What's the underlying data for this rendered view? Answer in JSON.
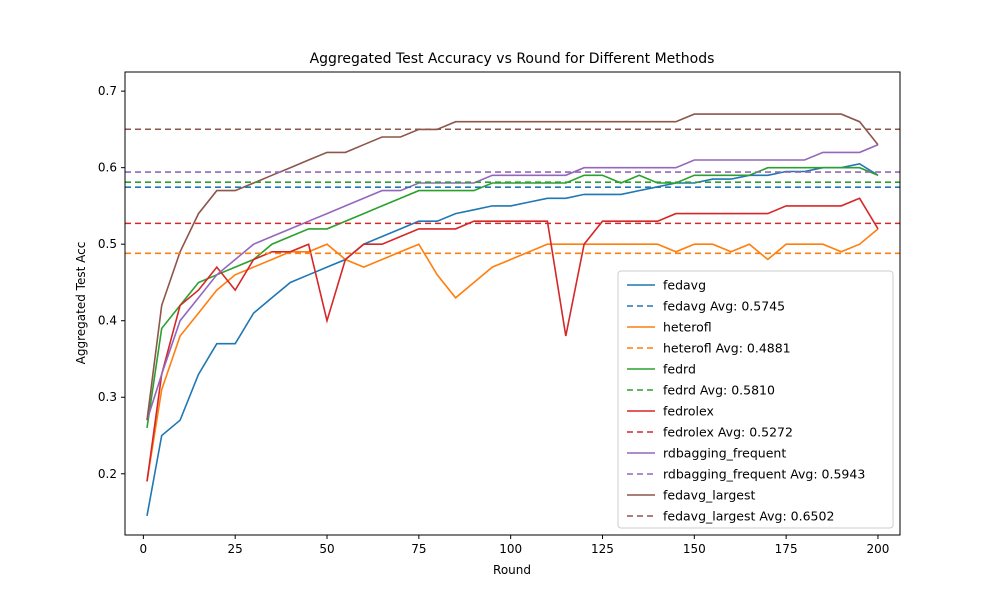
{
  "chart_data": {
    "type": "line",
    "title": "Aggregated Test Accuracy vs Round for Different Methods",
    "xlabel": "Round",
    "ylabel": "Aggregated Test Acc",
    "xlim": [
      -5,
      206
    ],
    "ylim": [
      0.12,
      0.725
    ],
    "xticks": [
      0,
      25,
      50,
      75,
      100,
      125,
      150,
      175,
      200
    ],
    "yticks": [
      0.2,
      0.3,
      0.4,
      0.5,
      0.6,
      0.7
    ],
    "ytick_labels": [
      "0.2",
      "0.3",
      "0.4",
      "0.5",
      "0.6",
      "0.7"
    ],
    "grid": false,
    "legend_position": "lower-right",
    "series": [
      {
        "name": "fedavg",
        "color": "#1f77b4",
        "avg": 0.5745,
        "avg_label": "fedavg Avg: 0.5745",
        "x": [
          1,
          5,
          10,
          15,
          20,
          25,
          30,
          35,
          40,
          45,
          50,
          55,
          60,
          65,
          70,
          75,
          80,
          85,
          90,
          95,
          100,
          105,
          110,
          115,
          120,
          125,
          130,
          135,
          140,
          145,
          150,
          155,
          160,
          165,
          170,
          175,
          180,
          185,
          190,
          195,
          200
        ],
        "y": [
          0.145,
          0.25,
          0.27,
          0.33,
          0.37,
          0.37,
          0.41,
          0.43,
          0.45,
          0.46,
          0.47,
          0.48,
          0.5,
          0.51,
          0.52,
          0.53,
          0.53,
          0.54,
          0.545,
          0.55,
          0.55,
          0.555,
          0.56,
          0.56,
          0.565,
          0.565,
          0.565,
          0.57,
          0.575,
          0.58,
          0.58,
          0.585,
          0.585,
          0.59,
          0.59,
          0.595,
          0.595,
          0.6,
          0.6,
          0.605,
          0.59
        ]
      },
      {
        "name": "heterofl",
        "color": "#ff7f0e",
        "avg": 0.4881,
        "avg_label": "heterofl Avg: 0.4881",
        "x": [
          1,
          5,
          10,
          15,
          20,
          25,
          30,
          35,
          40,
          45,
          50,
          55,
          60,
          65,
          70,
          75,
          80,
          85,
          90,
          95,
          100,
          105,
          110,
          115,
          120,
          125,
          130,
          135,
          140,
          145,
          150,
          155,
          160,
          165,
          170,
          175,
          180,
          185,
          190,
          195,
          200
        ],
        "y": [
          0.19,
          0.31,
          0.38,
          0.41,
          0.44,
          0.46,
          0.47,
          0.48,
          0.49,
          0.49,
          0.5,
          0.48,
          0.47,
          0.48,
          0.49,
          0.5,
          0.46,
          0.43,
          0.45,
          0.47,
          0.48,
          0.49,
          0.5,
          0.5,
          0.5,
          0.5,
          0.5,
          0.5,
          0.5,
          0.49,
          0.5,
          0.5,
          0.49,
          0.5,
          0.48,
          0.5,
          0.5,
          0.5,
          0.49,
          0.5,
          0.52
        ]
      },
      {
        "name": "fedrd",
        "color": "#2ca02c",
        "avg": 0.581,
        "avg_label": "fedrd Avg: 0.5810",
        "x": [
          1,
          5,
          10,
          15,
          20,
          25,
          30,
          35,
          40,
          45,
          50,
          55,
          60,
          65,
          70,
          75,
          80,
          85,
          90,
          95,
          100,
          105,
          110,
          115,
          120,
          125,
          130,
          135,
          140,
          145,
          150,
          155,
          160,
          165,
          170,
          175,
          180,
          185,
          190,
          195,
          200
        ],
        "y": [
          0.26,
          0.39,
          0.42,
          0.45,
          0.46,
          0.47,
          0.48,
          0.5,
          0.51,
          0.52,
          0.52,
          0.53,
          0.54,
          0.55,
          0.56,
          0.57,
          0.57,
          0.57,
          0.57,
          0.58,
          0.58,
          0.58,
          0.58,
          0.58,
          0.59,
          0.59,
          0.58,
          0.59,
          0.58,
          0.58,
          0.59,
          0.59,
          0.59,
          0.59,
          0.6,
          0.6,
          0.6,
          0.6,
          0.6,
          0.6,
          0.59
        ]
      },
      {
        "name": "fedrolex",
        "color": "#d62728",
        "avg": 0.5272,
        "avg_label": "fedrolex Avg: 0.5272",
        "x": [
          1,
          5,
          10,
          15,
          20,
          25,
          30,
          35,
          40,
          45,
          50,
          55,
          60,
          65,
          70,
          75,
          80,
          85,
          90,
          95,
          100,
          105,
          110,
          115,
          120,
          125,
          130,
          135,
          140,
          145,
          150,
          155,
          160,
          165,
          170,
          175,
          180,
          185,
          190,
          195,
          200
        ],
        "y": [
          0.19,
          0.33,
          0.42,
          0.44,
          0.47,
          0.44,
          0.48,
          0.49,
          0.49,
          0.5,
          0.4,
          0.48,
          0.5,
          0.5,
          0.51,
          0.52,
          0.52,
          0.52,
          0.53,
          0.53,
          0.53,
          0.53,
          0.53,
          0.38,
          0.5,
          0.53,
          0.53,
          0.53,
          0.53,
          0.54,
          0.54,
          0.54,
          0.54,
          0.54,
          0.54,
          0.55,
          0.55,
          0.55,
          0.55,
          0.56,
          0.52
        ]
      },
      {
        "name": "rdbagging_frequent",
        "color": "#9467bd",
        "avg": 0.5943,
        "avg_label": "rdbagging_frequent Avg: 0.5943",
        "x": [
          1,
          5,
          10,
          15,
          20,
          25,
          30,
          35,
          40,
          45,
          50,
          55,
          60,
          65,
          70,
          75,
          80,
          85,
          90,
          95,
          100,
          105,
          110,
          115,
          120,
          125,
          130,
          135,
          140,
          145,
          150,
          155,
          160,
          165,
          170,
          175,
          180,
          185,
          190,
          195,
          200
        ],
        "y": [
          0.27,
          0.33,
          0.4,
          0.43,
          0.46,
          0.48,
          0.5,
          0.51,
          0.52,
          0.53,
          0.54,
          0.55,
          0.56,
          0.57,
          0.57,
          0.58,
          0.58,
          0.58,
          0.58,
          0.59,
          0.59,
          0.59,
          0.59,
          0.59,
          0.6,
          0.6,
          0.6,
          0.6,
          0.6,
          0.6,
          0.61,
          0.61,
          0.61,
          0.61,
          0.61,
          0.61,
          0.61,
          0.62,
          0.62,
          0.62,
          0.63
        ]
      },
      {
        "name": "fedavg_largest",
        "color": "#8c564b",
        "avg": 0.6502,
        "avg_label": "fedavg_largest Avg: 0.6502",
        "x": [
          1,
          5,
          10,
          15,
          20,
          25,
          30,
          35,
          40,
          45,
          50,
          55,
          60,
          65,
          70,
          75,
          80,
          85,
          90,
          95,
          100,
          105,
          110,
          115,
          120,
          125,
          130,
          135,
          140,
          145,
          150,
          155,
          160,
          165,
          170,
          175,
          180,
          185,
          190,
          195,
          200
        ],
        "y": [
          0.27,
          0.42,
          0.49,
          0.54,
          0.57,
          0.57,
          0.58,
          0.59,
          0.6,
          0.61,
          0.62,
          0.62,
          0.63,
          0.64,
          0.64,
          0.65,
          0.65,
          0.66,
          0.66,
          0.66,
          0.66,
          0.66,
          0.66,
          0.66,
          0.66,
          0.66,
          0.66,
          0.66,
          0.66,
          0.66,
          0.67,
          0.67,
          0.67,
          0.67,
          0.67,
          0.67,
          0.67,
          0.67,
          0.67,
          0.66,
          0.63
        ]
      }
    ]
  }
}
